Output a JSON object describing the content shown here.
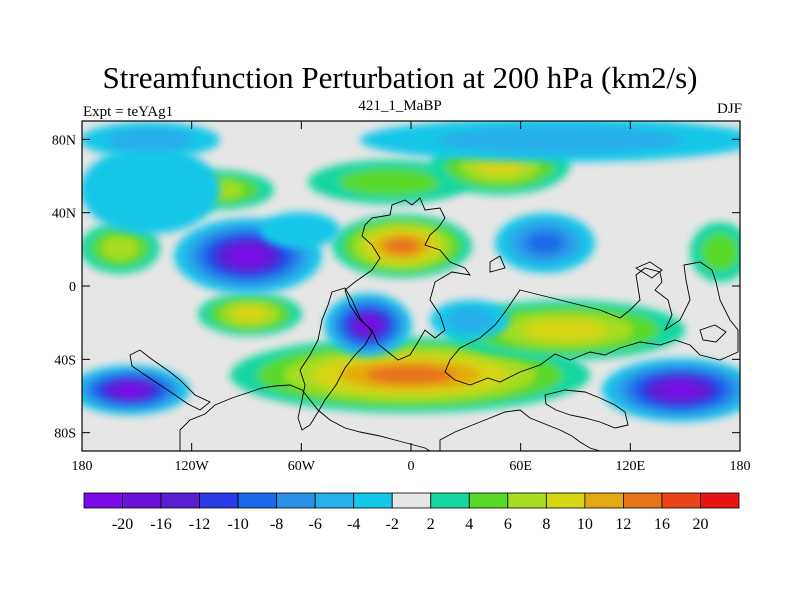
{
  "title": "Streamfunction Perturbation at 200 hPa (km2/s)",
  "left_string": "Expt = teYAg1",
  "center_string": "421_1_MaBP",
  "right_string": "DJF",
  "lat_labels": [
    "80N",
    "40N",
    "0",
    "40S",
    "80S"
  ],
  "lat_values": [
    80,
    40,
    0,
    -40,
    -80
  ],
  "lon_labels": [
    "180",
    "120W",
    "60W",
    "0",
    "60E",
    "120E",
    "180"
  ],
  "lon_values": [
    -180,
    -120,
    -60,
    0,
    60,
    120,
    180
  ],
  "colorbar": {
    "labels": [
      "-20",
      "-16",
      "-12",
      "-10",
      "-8",
      "-6",
      "-4",
      "-2",
      "2",
      "4",
      "6",
      "8",
      "10",
      "12",
      "16",
      "20"
    ],
    "colors": [
      "#7a0ae6",
      "#6a12dc",
      "#5a1ed2",
      "#2a3ae6",
      "#1a6ae8",
      "#2a90ea",
      "#28aee8",
      "#14c8e8",
      "#e6e6e6",
      "#16d7a0",
      "#5ad82a",
      "#a8dc22",
      "#d6d612",
      "#e2aa10",
      "#e8741a",
      "#ea4418",
      "#e61414"
    ]
  }
}
